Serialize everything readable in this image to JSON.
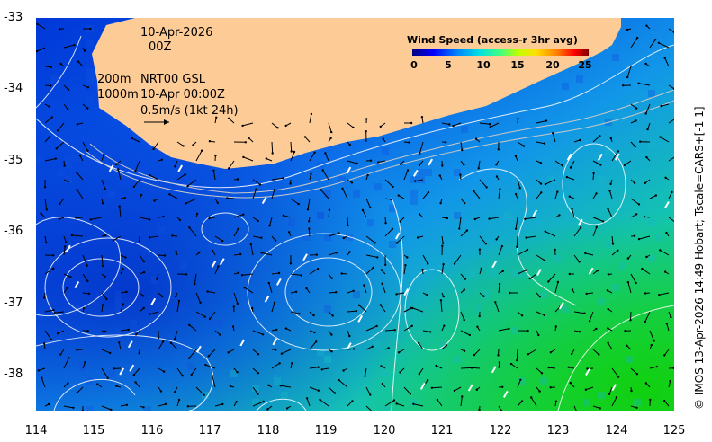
{
  "map": {
    "date_line": "10-Apr-2026",
    "hour_line": "00Z",
    "contour_line_1": "200m",
    "product": "NRT00 GSL",
    "contour_line_2": "1000m",
    "analysis_time": "10-Apr 00:00Z",
    "scale_label": "0.5m/s (1kt 24h)",
    "y_ticks": [
      "-33",
      "-34",
      "-35",
      "-36",
      "-37",
      "-38"
    ],
    "x_ticks": [
      "114",
      "115",
      "116",
      "117",
      "118",
      "119",
      "120",
      "121",
      "122",
      "123",
      "124",
      "125"
    ],
    "land_color": "#fdcb96"
  },
  "legend": {
    "title": "Wind Speed (access-r 3hr avg)",
    "ticks": [
      "0",
      "5",
      "10",
      "15",
      "20",
      "25"
    ]
  },
  "credit": "© IMOS 13-Apr-2026 14:49 Hobart; Tscale=CARS+[-1 1]"
}
